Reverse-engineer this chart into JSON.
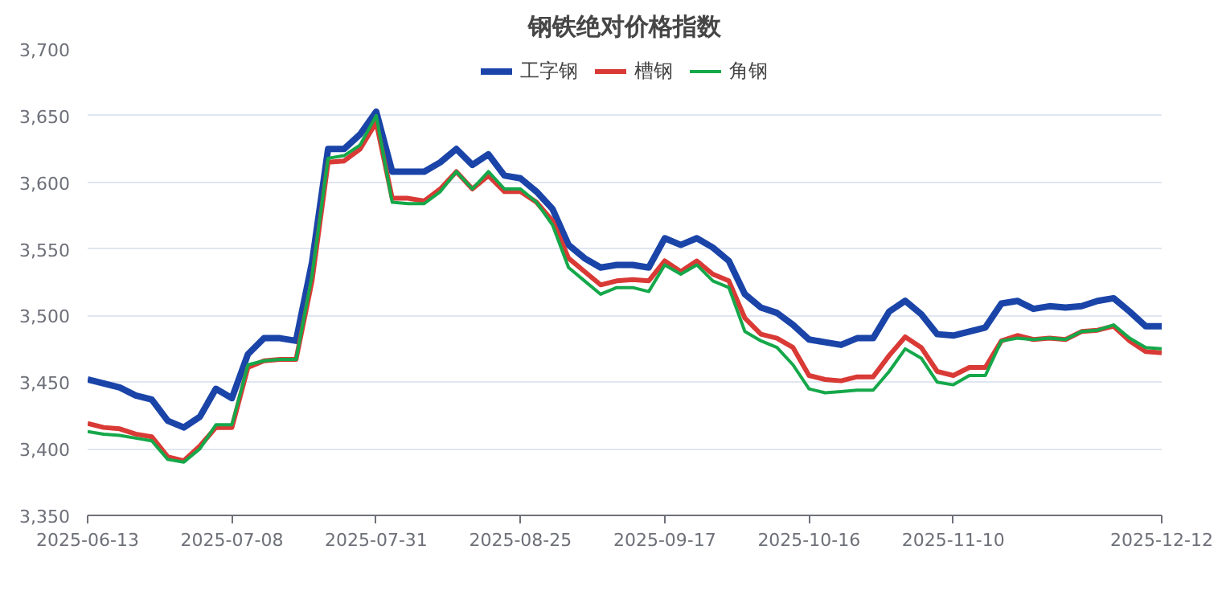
{
  "chart_data": {
    "type": "line",
    "title": "钢铁绝对价格指数",
    "categories": [
      "2025-06-13",
      null,
      null,
      null,
      null,
      null,
      null,
      null,
      null,
      "2025-07-08",
      null,
      null,
      null,
      null,
      null,
      null,
      null,
      null,
      "2025-07-31",
      null,
      null,
      null,
      null,
      null,
      null,
      null,
      null,
      "2025-08-25",
      null,
      null,
      null,
      null,
      null,
      null,
      null,
      null,
      "2025-09-17",
      null,
      null,
      null,
      null,
      null,
      null,
      null,
      null,
      "2025-10-16",
      null,
      null,
      null,
      null,
      null,
      null,
      null,
      null,
      "2025-11-10",
      null,
      null,
      null,
      null,
      null,
      null,
      null,
      null,
      null,
      null,
      null,
      null,
      "2025-12-12"
    ],
    "series": [
      {
        "name": "工字钢",
        "color": "#1a44a8",
        "values": [
          3452,
          3449,
          3446,
          3440,
          3437,
          3421,
          3416,
          3424,
          3445,
          3438,
          3471,
          3483,
          3483,
          3481,
          3540,
          3625,
          3625,
          3636,
          3653,
          3608,
          3608,
          3608,
          3615,
          3625,
          3613,
          3621,
          3605,
          3603,
          3593,
          3580,
          3553,
          3543,
          3536,
          3538,
          3538,
          3536,
          3558,
          3553,
          3558,
          3551,
          3541,
          3516,
          3506,
          3502,
          3493,
          3482,
          3480,
          3478,
          3483,
          3483,
          3503,
          3511,
          3501,
          3486,
          3485,
          3488,
          3491,
          3509,
          3511,
          3505,
          3507,
          3506,
          3507,
          3511,
          3513,
          3503,
          3492,
          3492
        ]
      },
      {
        "name": "槽钢",
        "color": "#d93a35",
        "values": [
          3419,
          3416,
          3415,
          3411,
          3409,
          3394,
          3391,
          3402,
          3416,
          3416,
          3461,
          3466,
          3467,
          3467,
          3526,
          3615,
          3616,
          3625,
          3645,
          3588,
          3588,
          3586,
          3595,
          3608,
          3595,
          3605,
          3593,
          3593,
          3585,
          3571,
          3543,
          3533,
          3523,
          3526,
          3527,
          3526,
          3541,
          3533,
          3541,
          3531,
          3526,
          3498,
          3486,
          3483,
          3476,
          3455,
          3452,
          3451,
          3454,
          3454,
          3470,
          3484,
          3476,
          3458,
          3455,
          3461,
          3461,
          3481,
          3485,
          3482,
          3483,
          3482,
          3488,
          3489,
          3492,
          3481,
          3473,
          3472
        ]
      },
      {
        "name": "角钢",
        "color": "#15a84a",
        "values": [
          3413,
          3411,
          3410,
          3408,
          3406,
          3392,
          3390,
          3400,
          3418,
          3418,
          3463,
          3466,
          3467,
          3467,
          3530,
          3618,
          3620,
          3628,
          3650,
          3585,
          3584,
          3584,
          3593,
          3608,
          3595,
          3608,
          3595,
          3595,
          3585,
          3568,
          3536,
          3526,
          3516,
          3521,
          3521,
          3518,
          3538,
          3531,
          3538,
          3526,
          3521,
          3488,
          3481,
          3476,
          3463,
          3445,
          3442,
          3443,
          3444,
          3444,
          3458,
          3475,
          3468,
          3450,
          3448,
          3455,
          3455,
          3481,
          3483,
          3482,
          3483,
          3482,
          3488,
          3489,
          3493,
          3483,
          3476,
          3475
        ]
      }
    ],
    "ylim": [
      3350,
      3700
    ],
    "yticks": [
      {
        "value": 3350,
        "label": "3,350"
      },
      {
        "value": 3400,
        "label": "3,400"
      },
      {
        "value": 3450,
        "label": "3,450"
      },
      {
        "value": 3500,
        "label": "3,500"
      },
      {
        "value": 3550,
        "label": "3,550"
      },
      {
        "value": 3600,
        "label": "3,600"
      },
      {
        "value": 3650,
        "label": "3,650"
      },
      {
        "value": 3700,
        "label": "3,700"
      }
    ],
    "grid": "y",
    "legend": "top"
  }
}
